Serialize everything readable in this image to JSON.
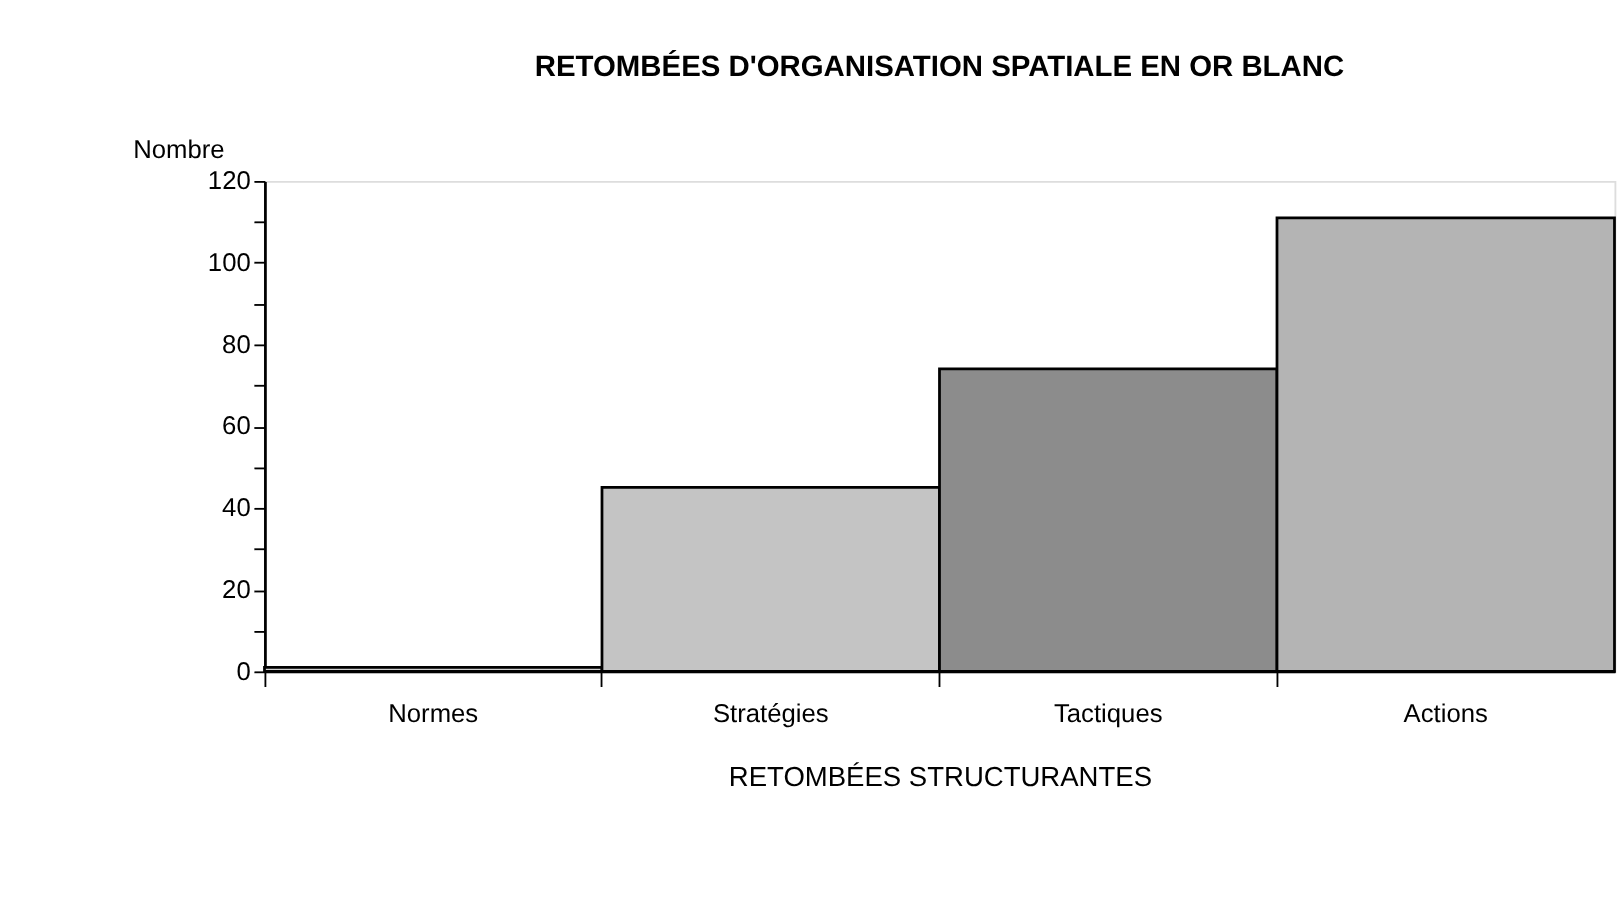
{
  "chart_data": {
    "type": "bar",
    "title": "RETOMBÉES D'ORGANISATION SPATIALE EN OR BLANC",
    "xlabel": "RETOMBÉES STRUCTURANTES",
    "ylabel": "Nombre",
    "categories": [
      "Normes",
      "Stratégies",
      "Tactiques",
      "Actions"
    ],
    "values": [
      1,
      45,
      74,
      111
    ],
    "colors": [
      "#d0d0d0",
      "#c4c4c4",
      "#8c8c8c",
      "#b4b4b4"
    ],
    "ylim": [
      0,
      120
    ],
    "yticks": [
      0,
      {
        "value": 10,
        "label": null
      },
      20,
      {
        "value": 30,
        "label": null
      },
      40,
      {
        "value": 50,
        "label": null
      },
      60,
      {
        "value": 70,
        "label": null
      },
      80,
      {
        "value": 90,
        "label": null
      },
      100,
      {
        "value": 110,
        "label": null
      },
      120
    ],
    "grid": false
  }
}
